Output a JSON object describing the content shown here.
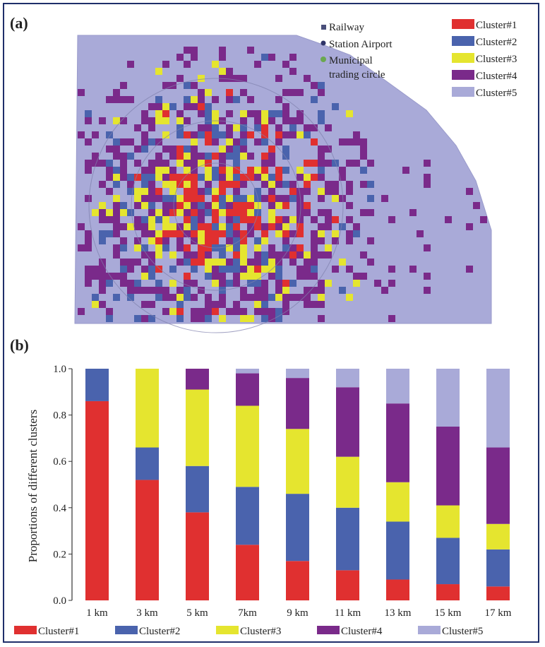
{
  "panel_a": {
    "label": "(a)",
    "legend_left": [
      {
        "text": "Railway",
        "color": "#4a4f7a"
      },
      {
        "text": "Station Airport",
        "color": "#2f3468"
      },
      {
        "text": "Municipal",
        "color": "#6aa84f"
      },
      {
        "text": "trading circle",
        "color": ""
      }
    ],
    "legend_right": [
      {
        "text": "Cluster#1",
        "color": "#e03030"
      },
      {
        "text": "Cluster#2",
        "color": "#4a63ad"
      },
      {
        "text": "Cluster#3",
        "color": "#e5e52f"
      },
      {
        "text": "Cluster#4",
        "color": "#7a2a8a"
      },
      {
        "text": "Cluster#5",
        "color": "#a9aad8"
      }
    ]
  },
  "panel_b": {
    "label": "(b)",
    "legend": [
      {
        "text": "Cluster#1",
        "color": "#e03030"
      },
      {
        "text": "Cluster#2",
        "color": "#4a63ad"
      },
      {
        "text": "Cluster#3",
        "color": "#e5e52f"
      },
      {
        "text": "Cluster#4",
        "color": "#7a2a8a"
      },
      {
        "text": "Cluster#5",
        "color": "#a9aad8"
      }
    ]
  },
  "chart_data": {
    "type": "bar",
    "stacked": true,
    "categories": [
      "1 km",
      "3 km",
      "5 km",
      "7km",
      "9 km",
      "11 km",
      "13 km",
      "15 km",
      "17 km"
    ],
    "ylabel": "Proportions of different clusters",
    "ylim": [
      0,
      1.0
    ],
    "yticks": [
      "0.0",
      "0.2",
      "0.4",
      "0.6",
      "0.8",
      "1.0"
    ],
    "series": [
      {
        "name": "Cluster#1",
        "color": "#e03030",
        "values": [
          0.86,
          0.52,
          0.38,
          0.24,
          0.17,
          0.13,
          0.09,
          0.07,
          0.06
        ]
      },
      {
        "name": "Cluster#2",
        "color": "#4a63ad",
        "values": [
          0.14,
          0.14,
          0.2,
          0.25,
          0.29,
          0.27,
          0.25,
          0.2,
          0.16
        ]
      },
      {
        "name": "Cluster#3",
        "color": "#e5e52f",
        "values": [
          0.0,
          0.34,
          0.33,
          0.35,
          0.28,
          0.22,
          0.17,
          0.14,
          0.11
        ]
      },
      {
        "name": "Cluster#4",
        "color": "#7a2a8a",
        "values": [
          0.0,
          0.0,
          0.09,
          0.14,
          0.22,
          0.3,
          0.34,
          0.34,
          0.33
        ]
      },
      {
        "name": "Cluster#5",
        "color": "#a9aad8",
        "values": [
          0.0,
          0.0,
          0.0,
          0.02,
          0.04,
          0.08,
          0.15,
          0.25,
          0.34
        ]
      }
    ]
  }
}
